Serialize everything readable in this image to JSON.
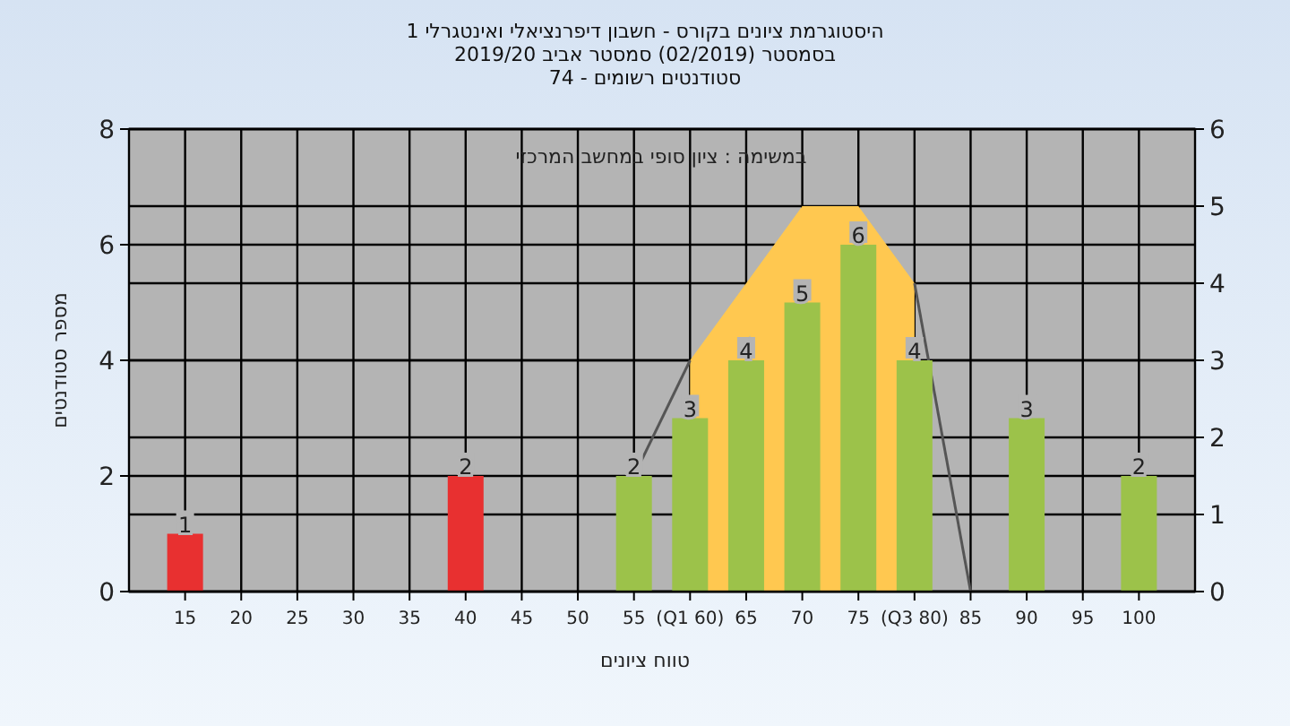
{
  "chart_data": {
    "type": "bar",
    "title": "היסטוגרמת ציונים בקורס - חשבון דיפרנציאלי ואינטגרלי 1",
    "subtitle": "בסמסטר  (02/2019)  סמסטר אביב 2019/20\nסטודנטים רשומים - 74",
    "xlabel": "טווח ציונים",
    "ylabel": "מספר סטודנטים",
    "annotations": [
      "במשימה : ציון סופי במחשב המרכזי"
    ],
    "xlim": [
      10,
      105
    ],
    "xticks": [
      15,
      20,
      25,
      30,
      35,
      40,
      45,
      50,
      55,
      {
        "value": 60,
        "label": "(Q1 60)"
      },
      65,
      70,
      75,
      {
        "value": 80,
        "label": "(Q3 80)"
      },
      85,
      90,
      95,
      100
    ],
    "ylim": [
      0,
      8
    ],
    "yticks": [
      0,
      2,
      4,
      6,
      8
    ],
    "y2lim": [
      0,
      6
    ],
    "y2ticks": [
      0,
      1,
      2,
      3,
      4,
      5,
      6
    ],
    "grid": true,
    "series": [
      {
        "type": "area",
        "axis": "y2",
        "color": "#ffc850",
        "x": [
          60,
          70,
          75,
          80
        ],
        "values": [
          3,
          5,
          5,
          4
        ]
      },
      {
        "type": "line",
        "axis": "y2",
        "color": "#555555",
        "x": [
          55,
          60
        ],
        "values": [
          1.5,
          3
        ]
      },
      {
        "type": "line",
        "axis": "y2",
        "color": "#555555",
        "x": [
          80,
          85
        ],
        "values": [
          4,
          0
        ]
      },
      {
        "x": [
          15,
          40,
          55,
          60,
          65,
          70,
          75,
          80,
          90,
          100
        ],
        "values": [
          1,
          2,
          2,
          3,
          4,
          5,
          6,
          4,
          3,
          2
        ],
        "value_labels": [
          "1",
          "2",
          "2",
          "3",
          "4",
          "5",
          "6",
          "4",
          "3",
          "2"
        ],
        "colors": [
          "#e83030",
          "#e83030",
          "#9cc24a",
          "#9cc24a",
          "#9cc24a",
          "#9cc24a",
          "#9cc24a",
          "#9cc24a",
          "#9cc24a",
          "#9cc24a"
        ]
      }
    ]
  }
}
